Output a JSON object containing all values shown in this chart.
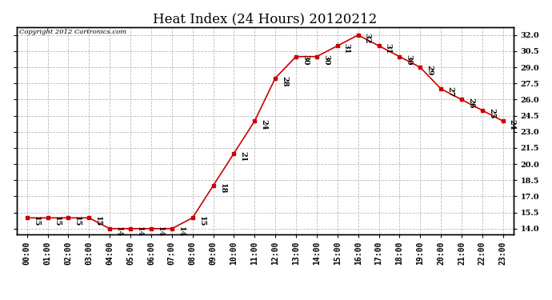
{
  "title": "Heat Index (24 Hours) 20120212",
  "copyright": "Copyright 2012 Cartronics.com",
  "x_labels": [
    "00:00",
    "01:00",
    "02:00",
    "03:00",
    "04:00",
    "05:00",
    "06:00",
    "07:00",
    "08:00",
    "09:00",
    "10:00",
    "11:00",
    "12:00",
    "13:00",
    "14:00",
    "15:00",
    "16:00",
    "17:00",
    "18:00",
    "19:00",
    "20:00",
    "21:00",
    "22:00",
    "23:00"
  ],
  "y_values": [
    15,
    15,
    15,
    15,
    14,
    14,
    14,
    14,
    15,
    18,
    21,
    24,
    28,
    30,
    30,
    31,
    32,
    31,
    30,
    29,
    27,
    26,
    25,
    24
  ],
  "line_color": "#cc0000",
  "marker_color": "#cc0000",
  "bg_color": "#ffffff",
  "plot_bg_color": "#ffffff",
  "grid_color": "#bbbbbb",
  "ylim_min": 13.5,
  "ylim_max": 32.75,
  "yticks": [
    14.0,
    15.5,
    17.0,
    18.5,
    20.0,
    21.5,
    23.0,
    24.5,
    26.0,
    27.5,
    29.0,
    30.5,
    32.0
  ],
  "title_fontsize": 12,
  "label_fontsize": 7,
  "annotation_fontsize": 7,
  "tick_label_fontsize": 7
}
